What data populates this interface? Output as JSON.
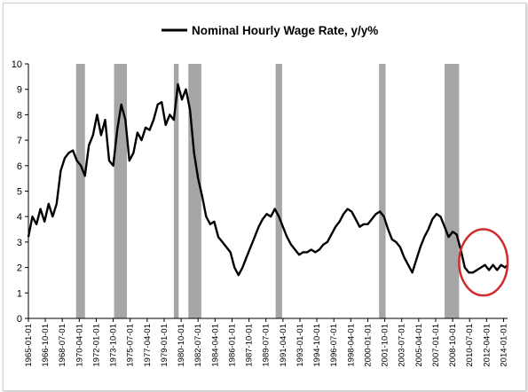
{
  "chart_data": {
    "type": "line",
    "title": "",
    "xlabel": "",
    "ylabel": "",
    "ylim": [
      0,
      10
    ],
    "y_ticks": [
      "0",
      "1",
      "2",
      "3",
      "4",
      "5",
      "6",
      "7",
      "8",
      "9",
      "10"
    ],
    "x_range": [
      "1965-01-01",
      "2014-06-01"
    ],
    "x_tick_labels": [
      "1965-01-01",
      "1966-10-01",
      "1968-07-01",
      "1970-04-01",
      "1972-01-01",
      "1973-10-01",
      "1975-07-01",
      "1977-04-01",
      "1979-01-01",
      "1980-10-01",
      "1982-07-01",
      "1984-04-01",
      "1986-01-01",
      "1987-10-01",
      "1989-07-01",
      "1991-04-01",
      "1993-01-01",
      "1994-10-01",
      "1996-07-01",
      "1998-04-01",
      "2000-01-01",
      "2001-10-01",
      "2003-07-01",
      "2005-04-01",
      "2007-01-01",
      "2008-10-01",
      "2010-07-01",
      "2012-04-01",
      "2014-01-01"
    ],
    "grid": false,
    "legend": "top-center",
    "series": [
      {
        "name": "Nominal Hourly Wage Rate, y/y%",
        "color": "#000000",
        "points": [
          [
            "1965-01-01",
            3.2
          ],
          [
            "1965-06-01",
            4.0
          ],
          [
            "1965-11-01",
            3.7
          ],
          [
            "1966-04-01",
            4.3
          ],
          [
            "1966-09-01",
            3.8
          ],
          [
            "1967-02-01",
            4.5
          ],
          [
            "1967-07-01",
            4.0
          ],
          [
            "1967-12-01",
            4.5
          ],
          [
            "1968-05-01",
            5.8
          ],
          [
            "1968-10-01",
            6.3
          ],
          [
            "1969-03-01",
            6.5
          ],
          [
            "1969-08-01",
            6.6
          ],
          [
            "1970-01-01",
            6.2
          ],
          [
            "1970-06-01",
            6.0
          ],
          [
            "1970-11-01",
            5.6
          ],
          [
            "1971-04-01",
            6.8
          ],
          [
            "1971-09-01",
            7.2
          ],
          [
            "1972-02-01",
            8.0
          ],
          [
            "1972-07-01",
            7.2
          ],
          [
            "1972-12-01",
            7.8
          ],
          [
            "1973-05-01",
            6.2
          ],
          [
            "1973-10-01",
            6.0
          ],
          [
            "1974-03-01",
            7.4
          ],
          [
            "1974-08-01",
            8.4
          ],
          [
            "1975-01-01",
            7.8
          ],
          [
            "1975-06-01",
            6.2
          ],
          [
            "1975-11-01",
            6.5
          ],
          [
            "1976-04-01",
            7.3
          ],
          [
            "1976-09-01",
            7.0
          ],
          [
            "1977-02-01",
            7.5
          ],
          [
            "1977-07-01",
            7.4
          ],
          [
            "1977-12-01",
            7.8
          ],
          [
            "1978-05-01",
            8.4
          ],
          [
            "1978-10-01",
            8.5
          ],
          [
            "1979-03-01",
            7.6
          ],
          [
            "1979-08-01",
            8.0
          ],
          [
            "1980-01-01",
            7.8
          ],
          [
            "1980-06-01",
            9.2
          ],
          [
            "1980-11-01",
            8.6
          ],
          [
            "1981-04-01",
            9.0
          ],
          [
            "1981-09-01",
            8.2
          ],
          [
            "1982-02-01",
            6.5
          ],
          [
            "1982-07-01",
            5.5
          ],
          [
            "1982-12-01",
            4.8
          ],
          [
            "1983-05-01",
            4.0
          ],
          [
            "1983-10-01",
            3.7
          ],
          [
            "1984-03-01",
            3.8
          ],
          [
            "1984-08-01",
            3.2
          ],
          [
            "1985-01-01",
            3.0
          ],
          [
            "1985-06-01",
            2.8
          ],
          [
            "1985-11-01",
            2.6
          ],
          [
            "1986-04-01",
            2.0
          ],
          [
            "1986-09-01",
            1.7
          ],
          [
            "1987-02-01",
            2.0
          ],
          [
            "1987-07-01",
            2.4
          ],
          [
            "1987-12-01",
            2.8
          ],
          [
            "1988-05-01",
            3.2
          ],
          [
            "1988-10-01",
            3.6
          ],
          [
            "1989-03-01",
            3.9
          ],
          [
            "1989-08-01",
            4.1
          ],
          [
            "1990-01-01",
            4.0
          ],
          [
            "1990-06-01",
            4.3
          ],
          [
            "1990-11-01",
            4.0
          ],
          [
            "1991-04-01",
            3.6
          ],
          [
            "1991-09-01",
            3.2
          ],
          [
            "1992-02-01",
            2.9
          ],
          [
            "1992-07-01",
            2.7
          ],
          [
            "1992-12-01",
            2.5
          ],
          [
            "1993-05-01",
            2.6
          ],
          [
            "1993-10-01",
            2.6
          ],
          [
            "1994-03-01",
            2.7
          ],
          [
            "1994-08-01",
            2.6
          ],
          [
            "1995-01-01",
            2.7
          ],
          [
            "1995-06-01",
            2.9
          ],
          [
            "1995-11-01",
            3.0
          ],
          [
            "1996-04-01",
            3.3
          ],
          [
            "1996-09-01",
            3.6
          ],
          [
            "1997-02-01",
            3.8
          ],
          [
            "1997-07-01",
            4.1
          ],
          [
            "1997-12-01",
            4.3
          ],
          [
            "1998-05-01",
            4.2
          ],
          [
            "1998-10-01",
            3.9
          ],
          [
            "1999-03-01",
            3.6
          ],
          [
            "1999-08-01",
            3.7
          ],
          [
            "2000-01-01",
            3.7
          ],
          [
            "2000-06-01",
            3.9
          ],
          [
            "2000-11-01",
            4.1
          ],
          [
            "2001-04-01",
            4.2
          ],
          [
            "2001-09-01",
            4.0
          ],
          [
            "2002-02-01",
            3.5
          ],
          [
            "2002-07-01",
            3.1
          ],
          [
            "2002-12-01",
            3.0
          ],
          [
            "2003-05-01",
            2.8
          ],
          [
            "2003-10-01",
            2.4
          ],
          [
            "2004-03-01",
            2.1
          ],
          [
            "2004-08-01",
            1.8
          ],
          [
            "2005-01-01",
            2.3
          ],
          [
            "2005-06-01",
            2.8
          ],
          [
            "2005-11-01",
            3.2
          ],
          [
            "2006-04-01",
            3.5
          ],
          [
            "2006-09-01",
            3.9
          ],
          [
            "2007-02-01",
            4.1
          ],
          [
            "2007-07-01",
            4.0
          ],
          [
            "2007-12-01",
            3.6
          ],
          [
            "2008-05-01",
            3.2
          ],
          [
            "2008-10-01",
            3.4
          ],
          [
            "2009-03-01",
            3.3
          ],
          [
            "2009-08-01",
            2.7
          ],
          [
            "2010-01-01",
            2.0
          ],
          [
            "2010-06-01",
            1.8
          ],
          [
            "2010-11-01",
            1.8
          ],
          [
            "2011-04-01",
            1.9
          ],
          [
            "2011-09-01",
            2.0
          ],
          [
            "2012-02-01",
            2.1
          ],
          [
            "2012-07-01",
            1.9
          ],
          [
            "2012-12-01",
            2.1
          ],
          [
            "2013-05-01",
            1.9
          ],
          [
            "2013-10-01",
            2.1
          ],
          [
            "2014-03-01",
            2.0
          ],
          [
            "2014-06-01",
            2.1
          ]
        ]
      }
    ],
    "recession_shading": [
      [
        "1969-12-01",
        "1970-11-01"
      ],
      [
        "1973-11-01",
        "1975-03-01"
      ],
      [
        "1980-01-01",
        "1980-07-01"
      ],
      [
        "1981-07-01",
        "1982-11-01"
      ],
      [
        "1990-07-01",
        "1991-03-01"
      ],
      [
        "2001-03-01",
        "2001-11-01"
      ],
      [
        "2007-12-01",
        "2009-06-01"
      ]
    ],
    "shading_color": "#a6a6a6",
    "annotation": {
      "type": "ellipse",
      "color": "#d22b2b",
      "x_range": [
        "2009-06-01",
        "2014-06-01"
      ],
      "y_range": [
        0.9,
        3.5
      ]
    }
  }
}
